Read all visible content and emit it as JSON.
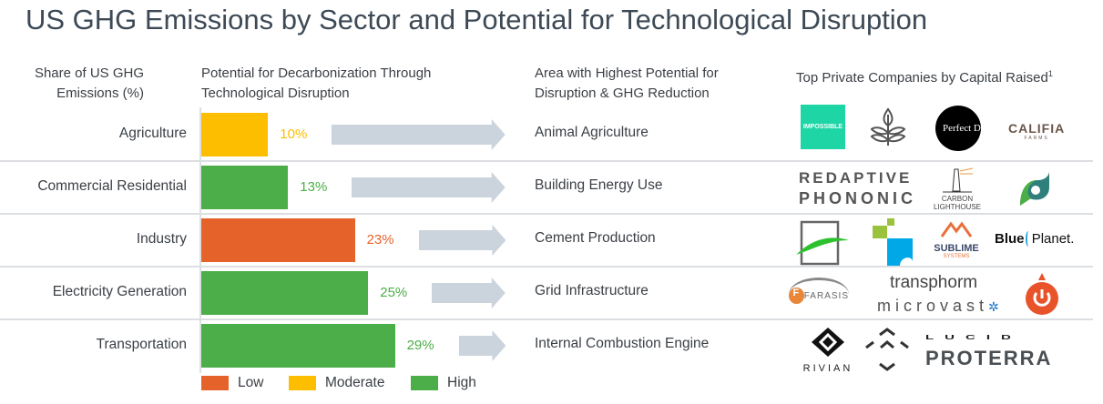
{
  "title": "US GHG Emissions by Sector and Potential for Technological Disruption",
  "headers": {
    "share": [
      "Share of US GHG",
      "Emissions (%)"
    ],
    "potential": [
      "Potential for Decarbonization Through",
      "Technological Disruption"
    ],
    "area": [
      "Area with Highest Potential for",
      "Disruption & GHG Reduction"
    ],
    "companies": "Top Private Companies by Capital Raised",
    "companies_sup": "1"
  },
  "colors": {
    "Low": "#e5632a",
    "Moderate": "#fdbe00",
    "High": "#4cae48",
    "arrow": "#cbd4dc"
  },
  "chart_data": {
    "type": "bar",
    "orientation": "horizontal",
    "categories": [
      "Agriculture",
      "Commercial Residential",
      "Industry",
      "Electricity Generation",
      "Transportation"
    ],
    "values": [
      10,
      13,
      23,
      25,
      29
    ],
    "value_labels": [
      "10%",
      "13%",
      "23%",
      "25%",
      "29%"
    ],
    "levels": [
      "Moderate",
      "High",
      "Low",
      "High",
      "High"
    ],
    "legend": [
      "Low",
      "Moderate",
      "High"
    ],
    "legend_placement": "bottom",
    "grid": false
  },
  "areas": [
    "Animal Agriculture",
    "Building Energy Use",
    "Cement Production",
    "Grid Infrastructure",
    "Internal Combustion Engine"
  ],
  "logos": {
    "agriculture": [
      "IMPOSSIBLE",
      "plant-logo",
      "Perfect Day",
      "CALIFIA",
      "FARMS"
    ],
    "buildings": [
      "REDAPTIVE",
      "PHONONIC",
      "CARBON",
      "LIGHTHOUSE",
      "leaf-logo"
    ],
    "industry": [
      "square-leaf-logo",
      "blocks-wave-logo",
      "SUBLIME",
      "SYSTEMS",
      "Blue",
      "Planet."
    ],
    "grid": [
      "FARASIS",
      "transphorm",
      "microvast",
      "power-logo"
    ],
    "transport": [
      "RIVIAN",
      "chevrons-logo",
      "LUCID",
      "PROTERRA"
    ]
  }
}
